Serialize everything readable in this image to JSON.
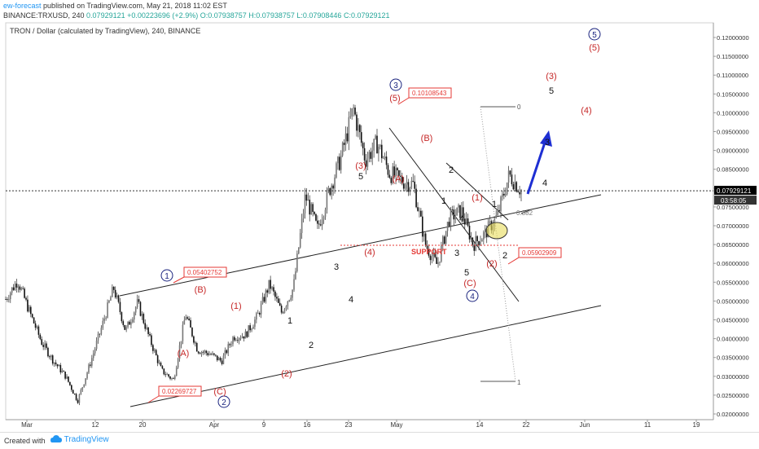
{
  "header": {
    "publisher": "ew-forecast",
    "published_text": "published on TradingView.com, May 21, 2018 11:02 EST",
    "symbol": "BINANCE:TRXUSD, 240",
    "price_close": "0.07929121",
    "change_text": "+0.00223696 (+2.9%)",
    "ohlc": {
      "o": "O:0.07938757",
      "h": "H:0.07938757",
      "l": "L:0.07908446",
      "c": "C:0.07929121"
    }
  },
  "chart_data": {
    "type": "candlestick",
    "title": "TRON / Dollar (calculated by TradingView), 240, BINANCE",
    "xlabel": "",
    "ylabel": "",
    "x_tick_labels": [
      "Mar",
      "12",
      "20",
      "Apr",
      "9",
      "16",
      "23",
      "May",
      "14",
      "22",
      "Jun",
      "11",
      "19"
    ],
    "ylim": [
      0.02,
      0.1235
    ],
    "y_ticks": [
      "0.02000000",
      "0.02500000",
      "0.03000000",
      "0.03500000",
      "0.04000000",
      "0.04500000",
      "0.05000000",
      "0.05500000",
      "0.06000000",
      "0.06500000",
      "0.07000000",
      "0.07500000",
      "0.08000000",
      "0.08500000",
      "0.09000000",
      "0.09500000",
      "0.10000000",
      "0.10500000",
      "0.11000000",
      "0.11500000",
      "0.12000000"
    ],
    "last_price": {
      "value": 0.07929121,
      "label": "0.07929121",
      "countdown": "03:58:05",
      "color": "#000000"
    },
    "price_path": [
      [
        "Mar",
        0.0505
      ],
      [
        "Mar 4",
        0.0555
      ],
      [
        "Mar 7",
        0.047
      ],
      [
        "Mar 10",
        0.039
      ],
      [
        "Mar 13",
        0.034
      ],
      [
        "Mar 16",
        0.03
      ],
      [
        "Mar 18",
        0.0235
      ],
      [
        "Mar 20",
        0.033
      ],
      [
        "Mar 22",
        0.043
      ],
      [
        "Mar 23",
        0.0535
      ],
      [
        "Mar 25",
        0.042
      ],
      [
        "Mar 27",
        0.0495
      ],
      [
        "Mar 29",
        0.04
      ],
      [
        "Apr",
        0.0315
      ],
      [
        "Apr 3",
        0.029
      ],
      [
        "Apr 4",
        0.0465
      ],
      [
        "Apr 6",
        0.037
      ],
      [
        "Apr 9",
        0.036
      ],
      [
        "Apr 12",
        0.034
      ],
      [
        "Apr 14",
        0.0405
      ],
      [
        "Apr 17",
        0.041
      ],
      [
        "Apr 19",
        0.046
      ],
      [
        "Apr 21",
        0.0545
      ],
      [
        "Apr 22",
        0.047
      ],
      [
        "Apr 23",
        0.0535
      ],
      [
        "Apr 24",
        0.078
      ],
      [
        "Apr 25",
        0.069
      ],
      [
        "Apr 27",
        0.0795
      ],
      [
        "Apr 29",
        0.0885
      ],
      [
        "May",
        0.1011
      ],
      [
        "May 2",
        0.0875
      ],
      [
        "May 4",
        0.092
      ],
      [
        "May 6",
        0.084
      ],
      [
        "May 8",
        0.082
      ],
      [
        "May 10",
        0.081
      ],
      [
        "May 12",
        0.065
      ],
      [
        "May 13",
        0.0595
      ],
      [
        "May 15",
        0.072
      ],
      [
        "May 16",
        0.074
      ],
      [
        "May 18",
        0.065
      ],
      [
        "May 19",
        0.068
      ],
      [
        "May 20",
        0.0725
      ],
      [
        "May 21",
        0.0835
      ],
      [
        "May 21 11:00",
        0.0793
      ]
    ],
    "price_labels": [
      {
        "text": "0.05402752",
        "value": 0.05402752
      },
      {
        "text": "0.10108543",
        "value": 0.10108543
      },
      {
        "text": "0.02269727",
        "value": 0.02269727
      },
      {
        "text": "0.05902909",
        "value": 0.05902909
      }
    ],
    "support_level": {
      "text": "SUPPORT",
      "value": 0.0645
    },
    "fib_retracement": {
      "levels": [
        "0",
        "0.382",
        "1"
      ],
      "top": 0.10108543,
      "bottom": 0.0284
    },
    "wave_labels": {
      "circled_blue": [
        "1",
        "2",
        "3",
        "4",
        "5"
      ],
      "parenthesized_red": [
        "(A)",
        "(B)",
        "(C)",
        "(1)",
        "(2)",
        "(3)",
        "(4)",
        "(5)"
      ],
      "black": [
        "1",
        "2",
        "3",
        "4",
        "5"
      ]
    },
    "colors": {
      "up": "#555555",
      "down": "#000000",
      "wave_red": "#c62828",
      "wave_blue": "#1a237e",
      "arrow": "#1e2fd3",
      "support": "#e53935"
    }
  },
  "footer": {
    "created_with": "Created with",
    "brand": "TradingView"
  }
}
